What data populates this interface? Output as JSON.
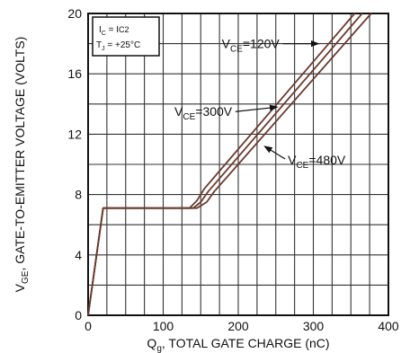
{
  "chart_data": {
    "type": "line",
    "title": "",
    "xlabel_parts": [
      "Q",
      "g",
      ", TOTAL GATE CHARGE (nC)"
    ],
    "ylabel_parts": [
      "V",
      "GE",
      ", GATE-TO-EMITTER VOLTAGE (VOLTS)"
    ],
    "xlim": [
      0,
      400
    ],
    "ylim": [
      0,
      20
    ],
    "xticks": [
      0,
      100,
      200,
      300,
      400
    ],
    "yticks": [
      0,
      4,
      8,
      12,
      16,
      20
    ],
    "grid": true,
    "legend_box": {
      "line1": [
        "I",
        "C",
        " = I",
        "C2"
      ],
      "line2": [
        "T",
        "J",
        " = +25°C"
      ]
    },
    "series": [
      {
        "name_parts": [
          "V",
          "CE",
          "=120V"
        ],
        "x": [
          0,
          20,
          135,
          145,
          155,
          355
        ],
        "y": [
          0,
          7.1,
          7.1,
          7.6,
          8.4,
          20
        ]
      },
      {
        "name_parts": [
          "V",
          "CE",
          "=300V"
        ],
        "x": [
          0,
          20,
          140,
          150,
          160,
          365
        ],
        "y": [
          0,
          7.1,
          7.1,
          7.5,
          8.2,
          20
        ]
      },
      {
        "name_parts": [
          "V",
          "CE",
          "=480V"
        ],
        "x": [
          0,
          20,
          145,
          158,
          168,
          377
        ],
        "y": [
          0,
          7.1,
          7.1,
          7.5,
          8.2,
          20
        ]
      }
    ],
    "annotations_at": [
      {
        "series": 0,
        "text_x": 178,
        "text_y": 17.7,
        "arrow_to_x": 307,
        "arrow_to_y": 18.0
      },
      {
        "series": 1,
        "text_x": 115,
        "text_y": 13.2,
        "arrow_to_x": 252,
        "arrow_to_y": 13.8
      },
      {
        "series": 2,
        "text_x": 266,
        "text_y": 10.0,
        "arrow_to_x": 235,
        "arrow_to_y": 11.2
      }
    ]
  }
}
